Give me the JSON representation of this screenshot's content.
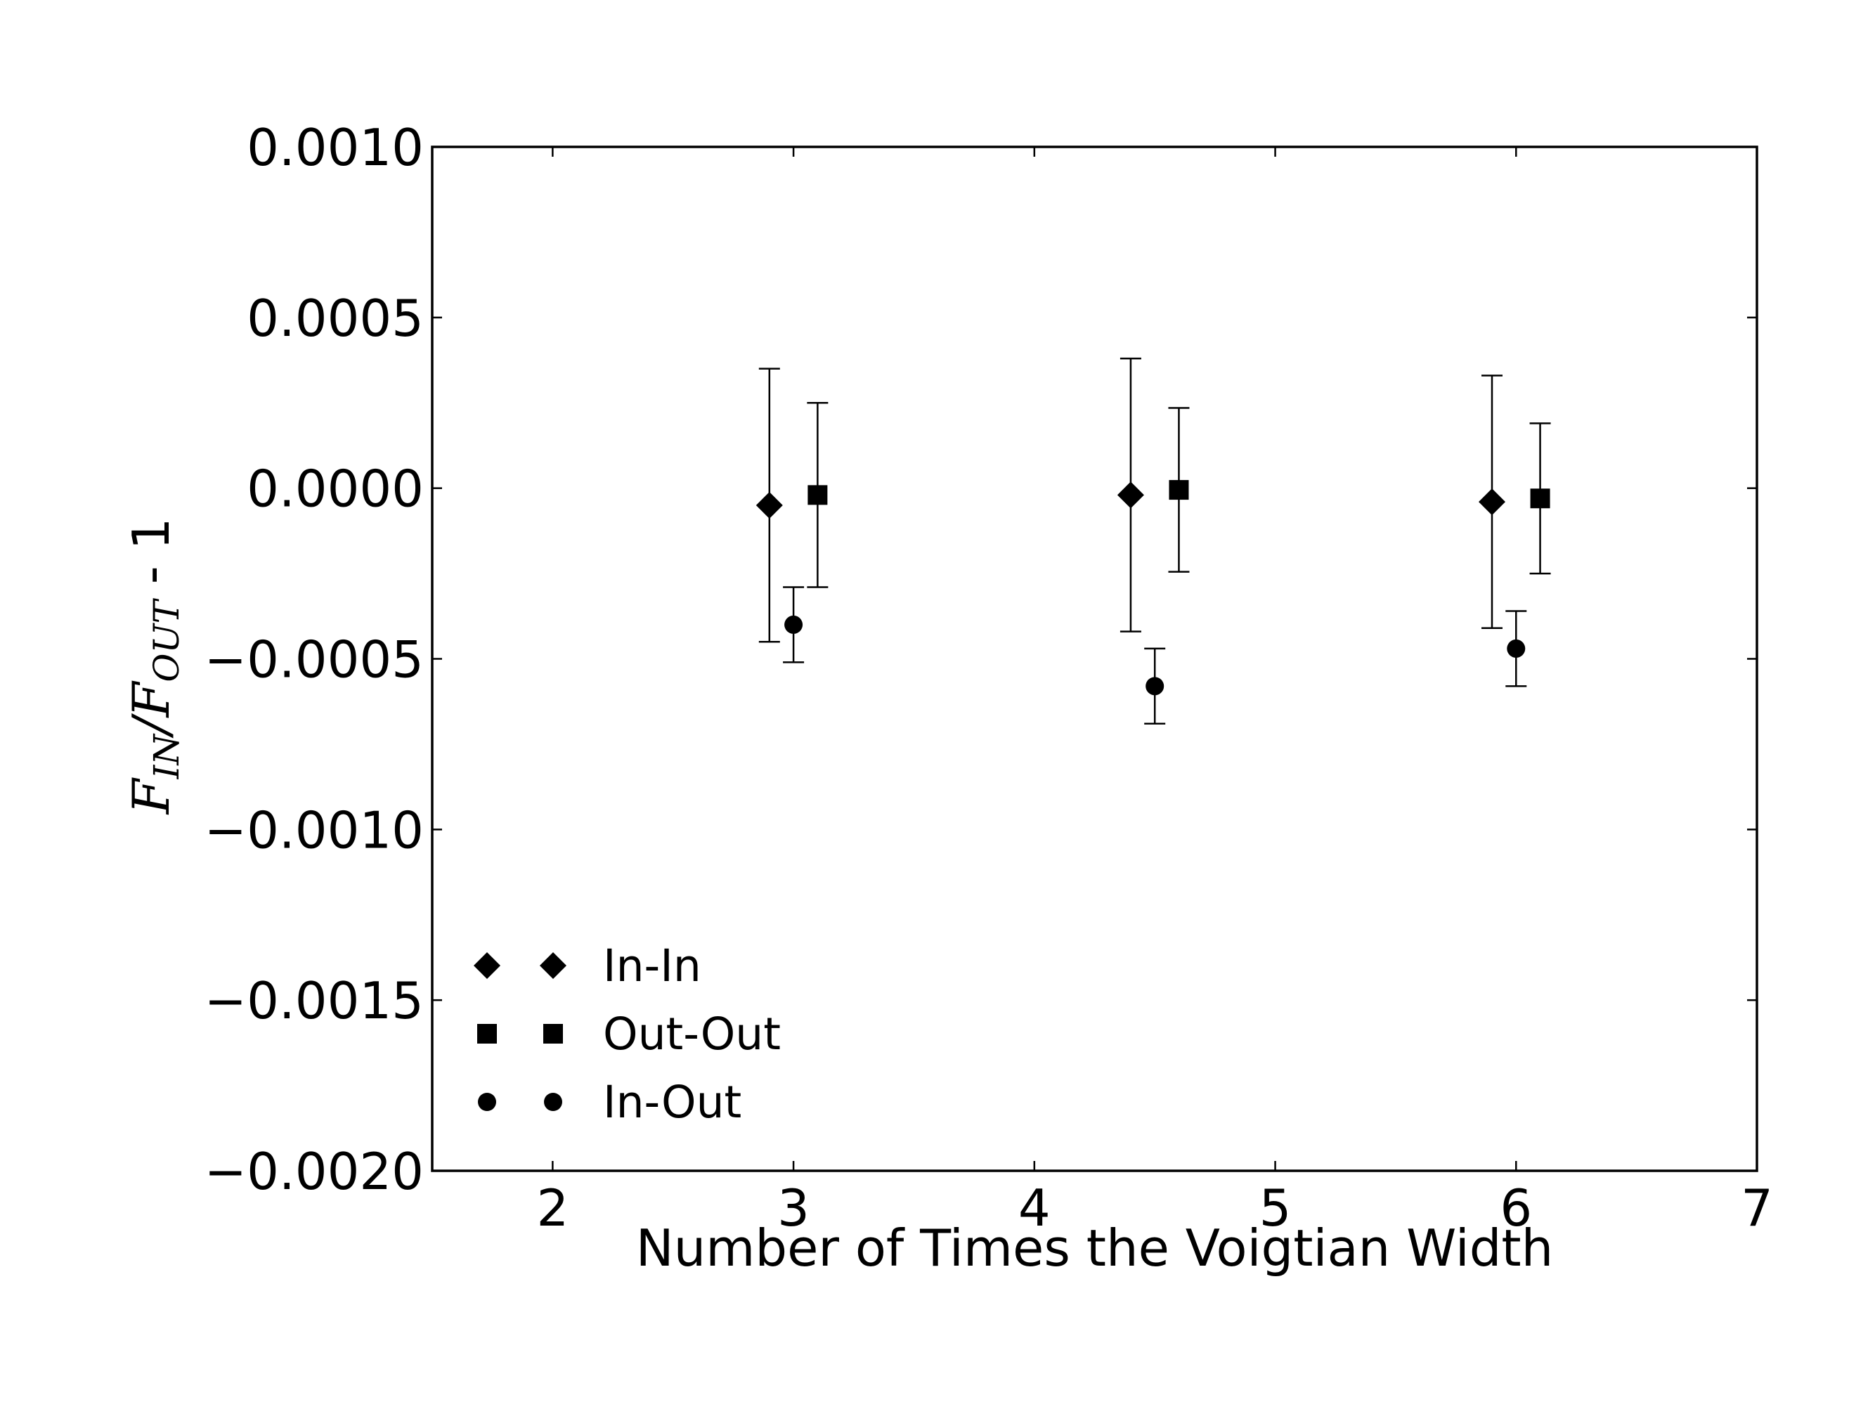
{
  "chart_data": {
    "type": "scatter",
    "title": "",
    "xlabel": "Number of Times the Voigtian Width",
    "ylabel": {
      "f1": "F",
      "sub1": "IN",
      "slash": "/",
      "f2": "F",
      "sub2": "OUT",
      "suffix": " - 1"
    },
    "xlim": [
      1.5,
      7
    ],
    "ylim": [
      -0.002,
      0.001
    ],
    "x_ticks": [
      2,
      3,
      4,
      5,
      6,
      7
    ],
    "x_tick_labels": [
      "2",
      "3",
      "4",
      "5",
      "6",
      "7"
    ],
    "y_ticks": [
      0.001,
      0.0005,
      0.0,
      -0.0005,
      -0.001,
      -0.0015,
      -0.002
    ],
    "y_tick_labels": [
      "0.0010",
      "0.0005",
      "0.0000",
      "−0.0005",
      "−0.0010",
      "−0.0015",
      "−0.0020"
    ],
    "grid": false,
    "legend_position": "lower-left",
    "series": [
      {
        "name": "In-In",
        "marker": "diamond",
        "color": "#000000",
        "points": [
          {
            "x": 2.9,
            "y": -5e-05,
            "err": 0.0004
          },
          {
            "x": 4.4,
            "y": -2e-05,
            "err": 0.0004
          },
          {
            "x": 5.9,
            "y": -4e-05,
            "err": 0.00037
          }
        ]
      },
      {
        "name": "Out-Out",
        "marker": "square",
        "color": "#000000",
        "points": [
          {
            "x": 3.1,
            "y": -2e-05,
            "err": 0.00027
          },
          {
            "x": 4.6,
            "y": -5e-06,
            "err": 0.00024
          },
          {
            "x": 6.1,
            "y": -3e-05,
            "err": 0.00022
          }
        ]
      },
      {
        "name": "In-Out",
        "marker": "circle",
        "color": "#000000",
        "points": [
          {
            "x": 3.0,
            "y": -0.0004,
            "err": 0.00011
          },
          {
            "x": 4.5,
            "y": -0.00058,
            "err": 0.00011
          },
          {
            "x": 6.0,
            "y": -0.00047,
            "err": 0.00011
          }
        ]
      }
    ]
  }
}
